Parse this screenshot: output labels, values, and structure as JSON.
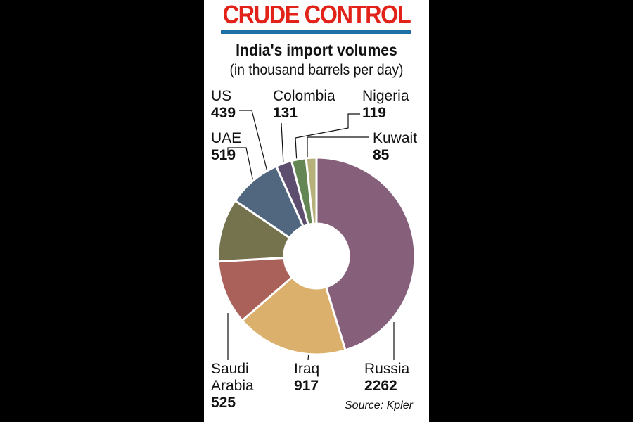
{
  "title": "CRUDE CONTROL",
  "subtitle": "India's import volumes",
  "units": "(in thousand barrels per day)",
  "source": "Source: Kpler",
  "chart_data": {
    "type": "pie",
    "donut": true,
    "categories": [
      "Russia",
      "Iraq",
      "Saudi Arabia",
      "UAE",
      "US",
      "Colombia",
      "Nigeria",
      "Kuwait"
    ],
    "values": [
      2262,
      917,
      525,
      519,
      439,
      131,
      119,
      85
    ],
    "colors": [
      "#86607a",
      "#dbb06c",
      "#a9615a",
      "#74734d",
      "#51677f",
      "#5d4d6e",
      "#638654",
      "#b6b17a"
    ],
    "labels": [
      {
        "name": "Russia",
        "value": "2262"
      },
      {
        "name": "Iraq",
        "value": "917"
      },
      {
        "name": "Saudi Arabia",
        "value": "525"
      },
      {
        "name": "UAE",
        "value": "519"
      },
      {
        "name": "US",
        "value": "439"
      },
      {
        "name": "Colombia",
        "value": "131"
      },
      {
        "name": "Nigeria",
        "value": "119"
      },
      {
        "name": "Kuwait",
        "value": "85"
      }
    ]
  }
}
